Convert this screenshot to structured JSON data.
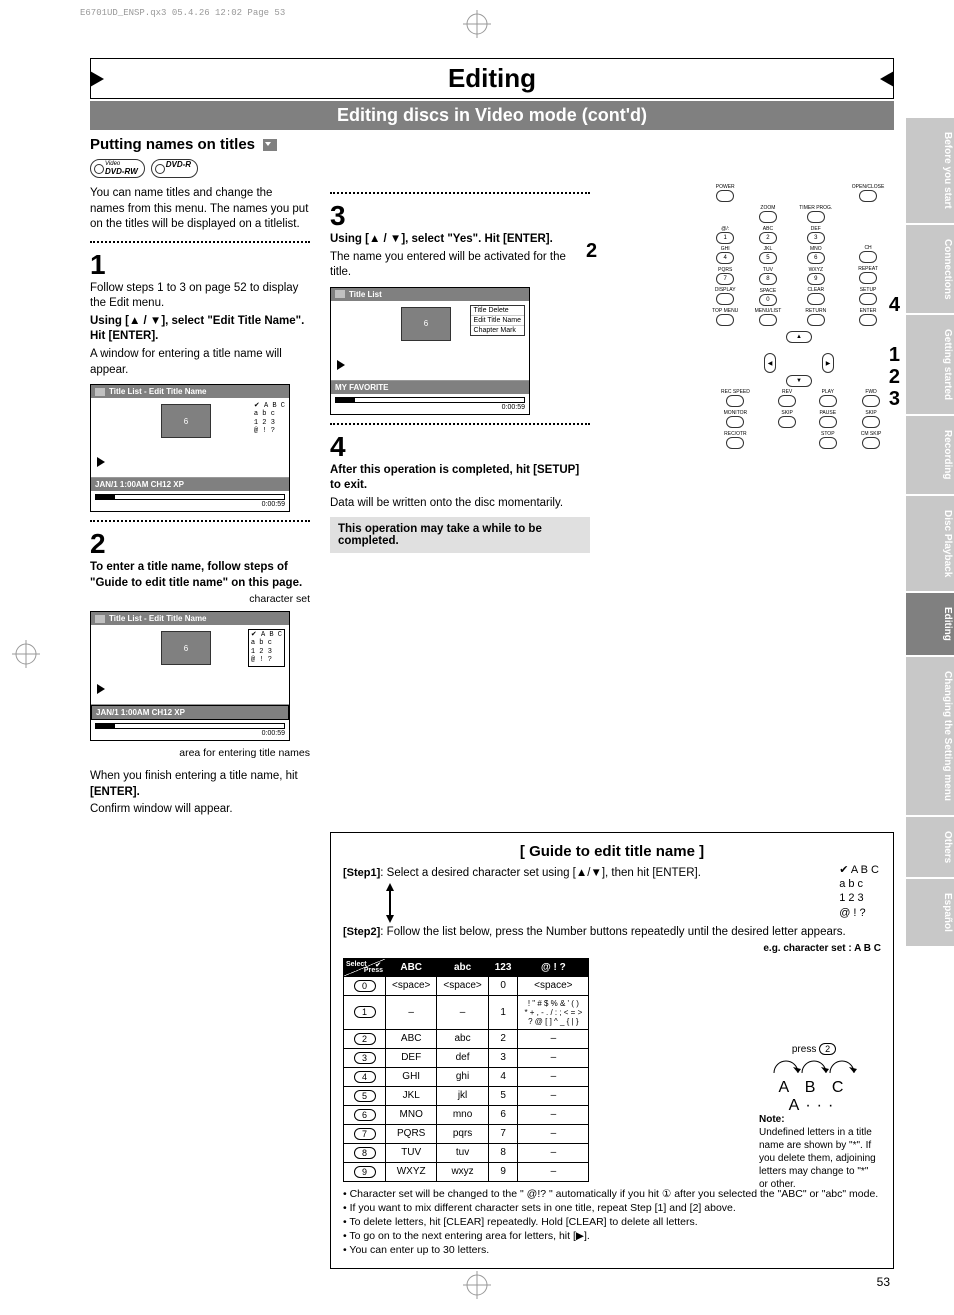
{
  "meta": {
    "header": "E6701UD_ENSP.qx3  05.4.26 12:02  Page 53"
  },
  "page_number": "53",
  "title": "Editing",
  "subtitle": "Editing discs in Video mode (cont'd)",
  "section_heading": "Putting names on titles",
  "disc_badges": {
    "rw_over": "Video",
    "rw": "DVD-RW",
    "r": "DVD-R"
  },
  "intro": "You can name titles and change the names from this menu. The names you put on the titles will be displayed on a titlelist.",
  "step1": {
    "num": "1",
    "p1": "Follow steps 1 to 3 on page 52 to display the Edit menu.",
    "p2_bold": "Using [▲ / ▼], select \"Edit Title Name\". Hit [ENTER].",
    "p3": "A window for entering a title name will appear."
  },
  "step2": {
    "num": "2",
    "p1_bold": "To enter a title name, follow steps of \"Guide to edit title name\" on this page.",
    "caption_top": "character set",
    "caption_bottom": "area for entering title names",
    "p2a": "When you finish entering a title name, hit ",
    "p2b": "[ENTER].",
    "p3": "Confirm window will appear."
  },
  "step3": {
    "num": "3",
    "p1_bold": "Using [▲ / ▼], select \"Yes\". Hit [ENTER].",
    "p2": "The name you entered will be activated for the title."
  },
  "step4": {
    "num": "4",
    "p1_bold": "After this operation is completed, hit [SETUP] to exit.",
    "p2": "Data will be written onto the disc momentarily.",
    "note": "This operation may take a while to be completed."
  },
  "mini_screens": {
    "edit_title": "Title List - Edit Title Name",
    "title_list": "Title List",
    "status": "JAN/1 1:00AM CH12 XP",
    "favorite": "MY FAVORITE",
    "time": "0:00:59",
    "thumb": "6",
    "charset": {
      "l1": "A  B  C",
      "l2": "a  b  c",
      "l3": "1  2  3",
      "l4": "@  !  ?"
    },
    "menu": {
      "m1": "Title Delete",
      "m2": "Edit Title Name",
      "m3": "Chapter Mark"
    }
  },
  "remote_side": {
    "n2": "2",
    "n4": "4",
    "n1": "1",
    "n2b": "2",
    "n3": "3"
  },
  "remote": {
    "r1": [
      "POWER",
      "",
      "",
      "OPEN/CLOSE"
    ],
    "r1b": [
      "",
      "ZOOM",
      "TIMER PROG.",
      ""
    ],
    "r2": [
      "@/:",
      "ABC",
      "DEF",
      ""
    ],
    "r2n": [
      "1",
      "2",
      "3",
      ""
    ],
    "r3": [
      "GHI",
      "JKL",
      "MNO",
      "CH"
    ],
    "r3n": [
      "4",
      "5",
      "6",
      ""
    ],
    "r4": [
      "PQRS",
      "TUV",
      "WXYZ",
      "REPEAT"
    ],
    "r4n": [
      "7",
      "8",
      "9",
      ""
    ],
    "r5": [
      "DISPLAY",
      "SPACE",
      "CLEAR",
      "SETUP"
    ],
    "r5n": [
      "",
      "0",
      "",
      ""
    ],
    "r6": [
      "TOP MENU",
      "MENU/LIST",
      "RETURN",
      "ENTER"
    ],
    "r7": [
      "REC SPEED",
      "REV",
      "PLAY",
      "FWD"
    ],
    "r8": [
      "MONITOR",
      "SKIP",
      "PAUSE",
      "SKIP"
    ],
    "r9": [
      "REC/OTR",
      "",
      "STOP",
      "CM SKIP"
    ]
  },
  "guide": {
    "title": "[ Guide to edit title name ]",
    "step1_lbl": "[Step1]",
    "step1_txt": ": Select a desired character set using [▲/▼], then hit [ENTER].",
    "step2_lbl": "[Step2]",
    "step2_txt": ": Follow the list below, press the Number buttons repeatedly until the desired letter appears.",
    "eg_label": "e.g. character set : A B C",
    "eg_press": "press",
    "eg_btn": "2",
    "eg_big": "A  B  C  A···",
    "cs": {
      "l1": "A B C",
      "l2": "a b c",
      "l3": "1 2 3",
      "l4": "@ ! ?"
    },
    "note_h": "Note:",
    "note_body": "Undefined letters in a title name are shown by \"*\".  If you delete them, adjoining letters may change to \"*\" or other.",
    "bullets": [
      "Character set will be changed to the \" @!? \" automatically if you hit  ①  after you selected the \"ABC\" or \"abc\" mode.",
      "If you want to mix different character sets in one title, repeat Step [1] and [2] above.",
      "To delete letters, hit [CLEAR] repeatedly. Hold [CLEAR] to delete all letters.",
      "To go on to the next entering area for letters, hit [▶].",
      "You can enter up to 30 letters."
    ],
    "table": {
      "header_corner": {
        "select": "Select",
        "press": "Press",
        "chk": "✔"
      },
      "headers": [
        "ABC",
        "abc",
        "123",
        "@ ! ?"
      ],
      "rows": [
        {
          "btn": "0",
          "c": [
            "<space>",
            "<space>",
            "0",
            "<space>"
          ]
        },
        {
          "btn": "1",
          "c": [
            "–",
            "–",
            "1",
            "! \" # $ % & ' ( )\n* + , - . / : ; < = >\n? @ [ ] ^ _ { | }"
          ]
        },
        {
          "btn": "2",
          "c": [
            "ABC",
            "abc",
            "2",
            "–"
          ]
        },
        {
          "btn": "3",
          "c": [
            "DEF",
            "def",
            "3",
            "–"
          ]
        },
        {
          "btn": "4",
          "c": [
            "GHI",
            "ghi",
            "4",
            "–"
          ]
        },
        {
          "btn": "5",
          "c": [
            "JKL",
            "jkl",
            "5",
            "–"
          ]
        },
        {
          "btn": "6",
          "c": [
            "MNO",
            "mno",
            "6",
            "–"
          ]
        },
        {
          "btn": "7",
          "c": [
            "PQRS",
            "pqrs",
            "7",
            "–"
          ]
        },
        {
          "btn": "8",
          "c": [
            "TUV",
            "tuv",
            "8",
            "–"
          ]
        },
        {
          "btn": "9",
          "c": [
            "WXYZ",
            "wxyz",
            "9",
            "–"
          ]
        }
      ]
    }
  },
  "side_tabs": [
    {
      "label": "Before you start",
      "cls": "st-light"
    },
    {
      "label": "Connections",
      "cls": "st-light"
    },
    {
      "label": "Getting started",
      "cls": "st-light"
    },
    {
      "label": "Recording",
      "cls": "st-light"
    },
    {
      "label": "Disc Playback",
      "cls": "st-light"
    },
    {
      "label": "Editing",
      "cls": "st-dark"
    },
    {
      "label": "Changing the Setting menu",
      "cls": "st-light"
    },
    {
      "label": "Others",
      "cls": "st-light"
    },
    {
      "label": "Español",
      "cls": "st-light"
    }
  ]
}
